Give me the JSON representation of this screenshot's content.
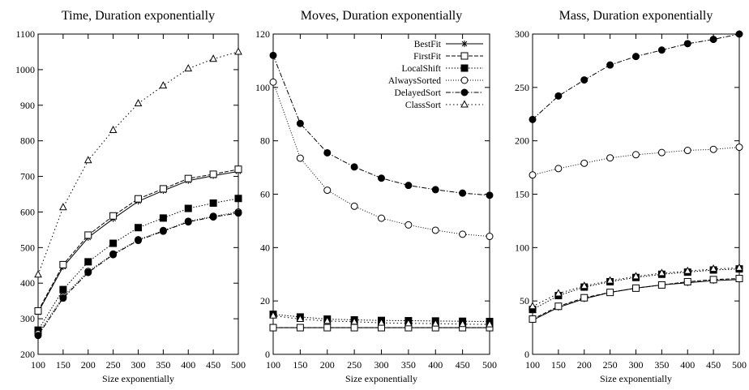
{
  "chart_data": [
    {
      "type": "line",
      "title": "Time, Duration exponentially",
      "xlabel": "Size exponentially",
      "ylabel": "",
      "x": [
        100,
        150,
        200,
        250,
        300,
        350,
        400,
        450,
        500
      ],
      "xlim": [
        100,
        500
      ],
      "ylim": [
        200,
        1100
      ],
      "xticks": [
        100,
        150,
        200,
        250,
        300,
        350,
        400,
        450,
        500
      ],
      "yticks": [
        200,
        300,
        400,
        500,
        600,
        700,
        800,
        900,
        1000,
        1100
      ],
      "grid": false,
      "series": [
        {
          "name": "BestFit",
          "values": [
            318,
            446,
            528,
            581,
            630,
            660,
            688,
            702,
            714
          ]
        },
        {
          "name": "FirstFit",
          "values": [
            322,
            452,
            535,
            589,
            637,
            665,
            694,
            706,
            720
          ]
        },
        {
          "name": "LocalShift",
          "values": [
            268,
            382,
            460,
            512,
            556,
            583,
            610,
            625,
            638
          ]
        },
        {
          "name": "AlwaysSorted",
          "values": [
            258,
            362,
            433,
            482,
            522,
            548,
            574,
            588,
            600
          ]
        },
        {
          "name": "DelayedSort",
          "values": [
            253,
            358,
            430,
            480,
            520,
            546,
            572,
            586,
            597
          ]
        },
        {
          "name": "ClassSort",
          "values": [
            424,
            613,
            745,
            830,
            905,
            955,
            1003,
            1030,
            1050
          ]
        }
      ]
    },
    {
      "type": "line",
      "title": "Moves, Duration exponentially",
      "xlabel": "Size exponentially",
      "ylabel": "",
      "x": [
        100,
        150,
        200,
        250,
        300,
        350,
        400,
        450,
        500
      ],
      "xlim": [
        100,
        500
      ],
      "ylim": [
        0,
        120
      ],
      "xticks": [
        100,
        150,
        200,
        250,
        300,
        350,
        400,
        450,
        500
      ],
      "yticks": [
        0,
        20,
        40,
        60,
        80,
        100,
        120
      ],
      "grid": false,
      "legend": "top-right",
      "series": [
        {
          "name": "BestFit",
          "values": [
            10,
            10,
            10,
            10,
            10,
            10,
            10,
            10,
            10
          ]
        },
        {
          "name": "FirstFit",
          "values": [
            10,
            10,
            10,
            10,
            10,
            10,
            10,
            10,
            10
          ]
        },
        {
          "name": "LocalShift",
          "values": [
            15,
            14,
            13.2,
            12.9,
            12.7,
            12.6,
            12.5,
            12.4,
            12.3
          ]
        },
        {
          "name": "AlwaysSorted",
          "values": [
            102,
            73.5,
            61.5,
            55.5,
            51,
            48.5,
            46.5,
            45,
            44.2
          ]
        },
        {
          "name": "DelayedSort",
          "values": [
            112,
            86.5,
            75.5,
            70.2,
            66,
            63.3,
            61.7,
            60.4,
            59.6
          ]
        },
        {
          "name": "ClassSort",
          "values": [
            14.5,
            13.2,
            12.5,
            12.2,
            11.8,
            11.6,
            11.5,
            11.3,
            11.2
          ]
        }
      ]
    },
    {
      "type": "line",
      "title": "Mass, Duration exponentially",
      "xlabel": "Size exponentially",
      "ylabel": "",
      "x": [
        100,
        150,
        200,
        250,
        300,
        350,
        400,
        450,
        500
      ],
      "xlim": [
        100,
        500
      ],
      "ylim": [
        0,
        300
      ],
      "xticks": [
        100,
        150,
        200,
        250,
        300,
        350,
        400,
        450,
        500
      ],
      "yticks": [
        0,
        50,
        100,
        150,
        200,
        250,
        300
      ],
      "grid": false,
      "series": [
        {
          "name": "BestFit",
          "values": [
            32,
            44,
            52,
            58,
            62,
            65,
            67,
            69,
            70
          ]
        },
        {
          "name": "FirstFit",
          "values": [
            33,
            45,
            53,
            58,
            62,
            65,
            68,
            70,
            71
          ]
        },
        {
          "name": "LocalShift",
          "values": [
            42,
            55,
            63,
            68,
            72,
            75,
            77,
            79,
            80
          ]
        },
        {
          "name": "AlwaysSorted",
          "values": [
            168,
            174,
            179,
            184,
            187,
            189,
            191,
            192,
            194
          ]
        },
        {
          "name": "DelayedSort",
          "values": [
            220,
            242,
            257,
            271,
            279,
            285,
            291,
            295,
            300
          ]
        },
        {
          "name": "ClassSort",
          "values": [
            45,
            57,
            64,
            69,
            73,
            76,
            78,
            80,
            81
          ]
        }
      ]
    }
  ]
}
